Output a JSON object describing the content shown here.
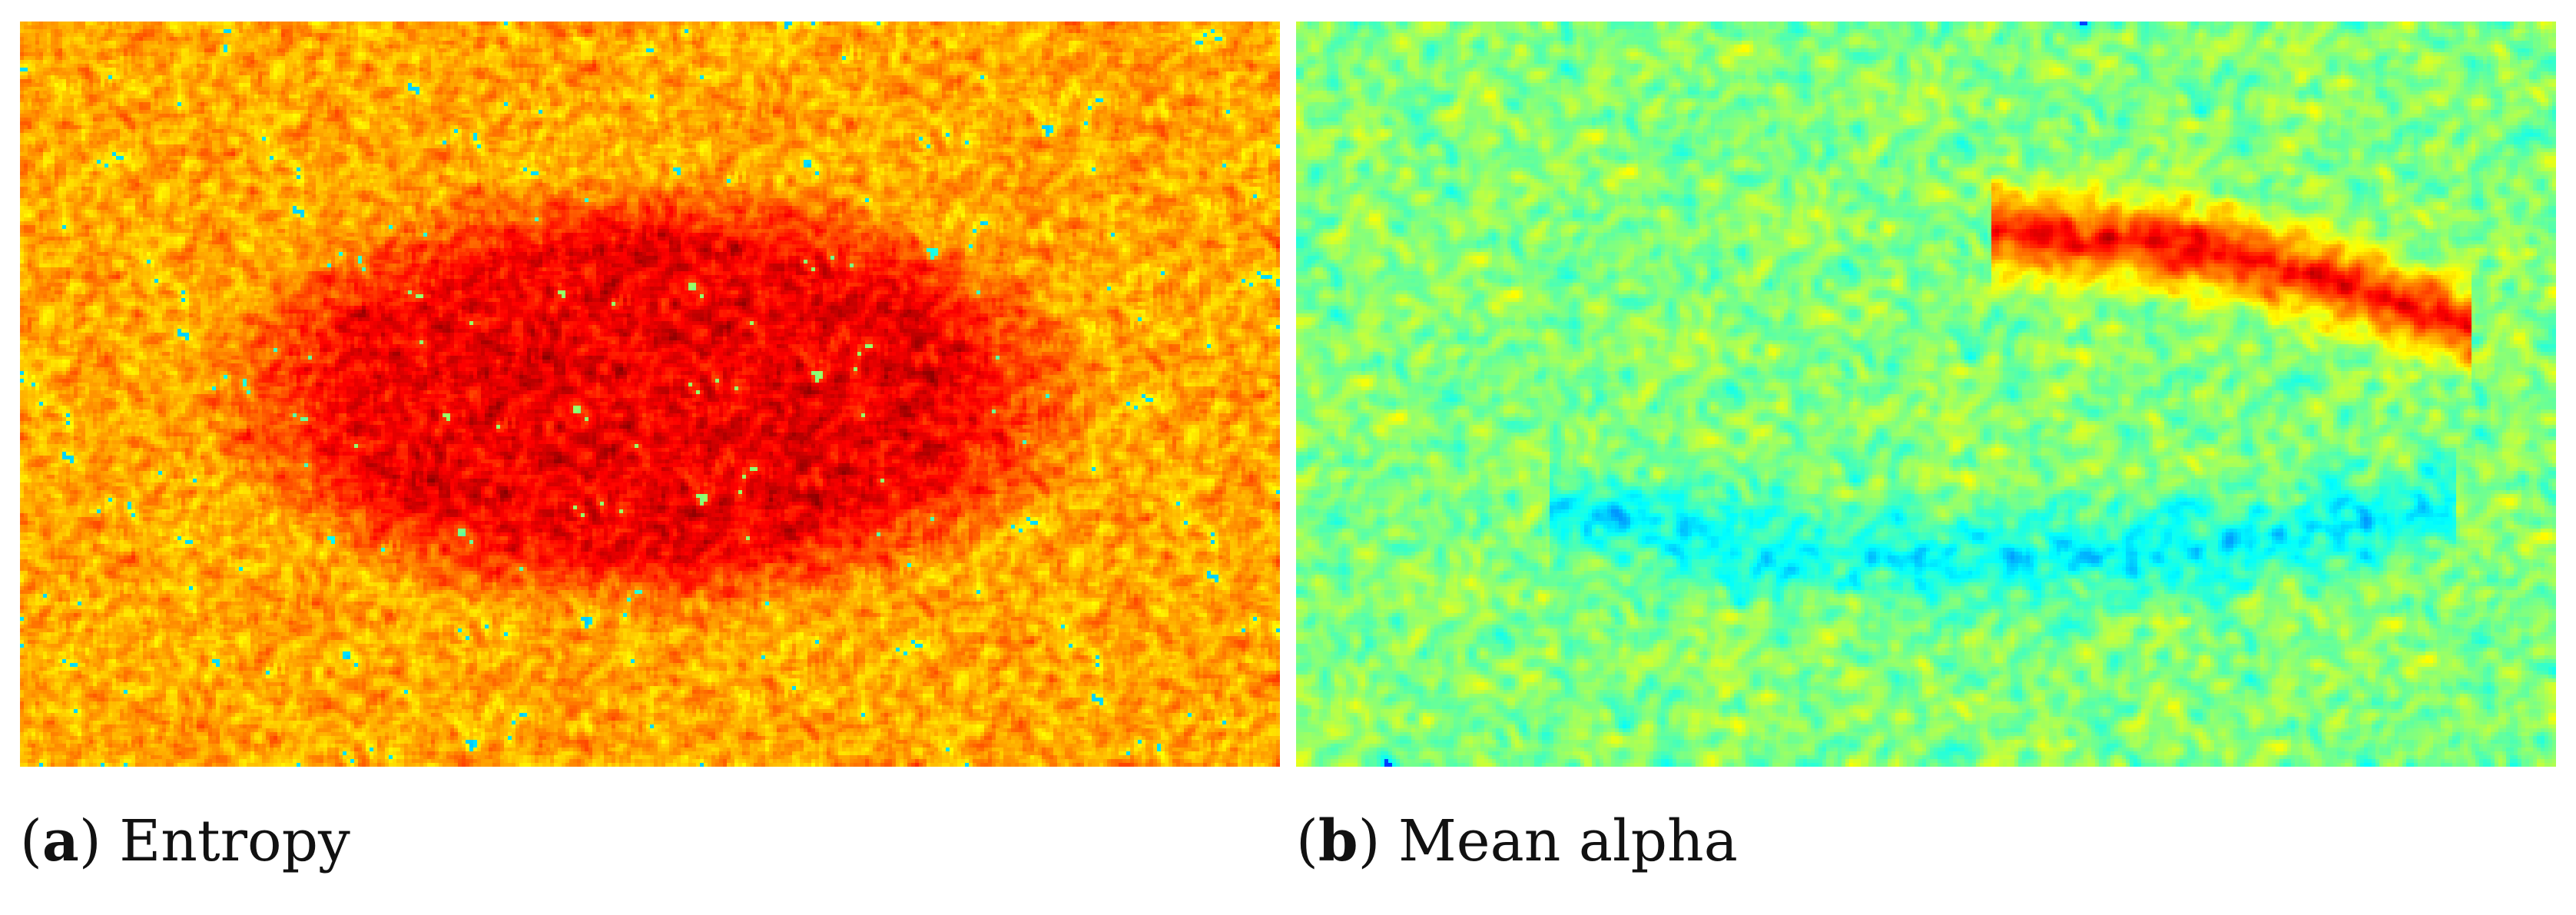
{
  "figure": {
    "panels": [
      {
        "id": "a",
        "letter": "a",
        "title": "Entropy",
        "colormap": "jet",
        "dominant_colors": [
          "#e8401a",
          "#f5d619",
          "#ffff33",
          "#7fe0b0",
          "#33c8ee",
          "#1a3fcc"
        ]
      },
      {
        "id": "b",
        "letter": "b",
        "title": "Mean alpha",
        "colormap": "jet",
        "dominant_colors": [
          "#3fd0e8",
          "#8fe6a0",
          "#f5e619",
          "#e8401a",
          "#1a4fe0"
        ]
      }
    ],
    "paren_open": "(",
    "paren_close": ")"
  }
}
